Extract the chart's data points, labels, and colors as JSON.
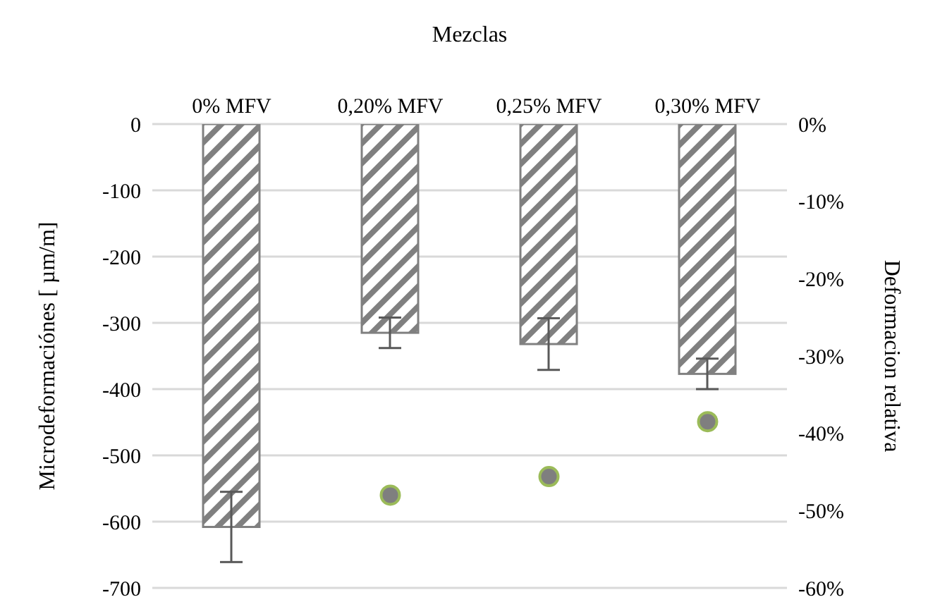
{
  "chart_data": {
    "type": "bar",
    "xlabel": "Mezclas",
    "ylabel": "Microdeformaciónes [ µm/m]",
    "y2label": "Deformacion relativa",
    "categories": [
      "0% MFV",
      "0,20% MFV",
      "0,25% MFV",
      "0,30% MFV"
    ],
    "series": [
      {
        "color": "#808080",
        "values": [
          -608,
          -315,
          -332,
          -377
        ],
        "errors": [
          53,
          23,
          39,
          23
        ]
      },
      {
        "type": "scatter",
        "axis": "y2",
        "color": "#7f7f7f",
        "values": [
          null,
          -48,
          -45.6,
          -38.5
        ]
      }
    ],
    "ylim": [
      -700,
      0
    ],
    "yticks": [
      -700,
      -600,
      -500,
      -400,
      -300,
      -200,
      -100,
      0
    ],
    "y2lim": [
      -60,
      0
    ],
    "y2ticks": [
      {
        "value": -60,
        "label": "-60%"
      },
      {
        "value": -50,
        "label": "-50%"
      },
      {
        "value": -40,
        "label": "-40%"
      },
      {
        "value": -30,
        "label": "-30%"
      },
      {
        "value": -20,
        "label": "-20%"
      },
      {
        "value": -10,
        "label": "-10%"
      },
      {
        "value": 0,
        "label": "0%"
      }
    ],
    "grid": "y",
    "legend": false,
    "marker": "circle"
  }
}
